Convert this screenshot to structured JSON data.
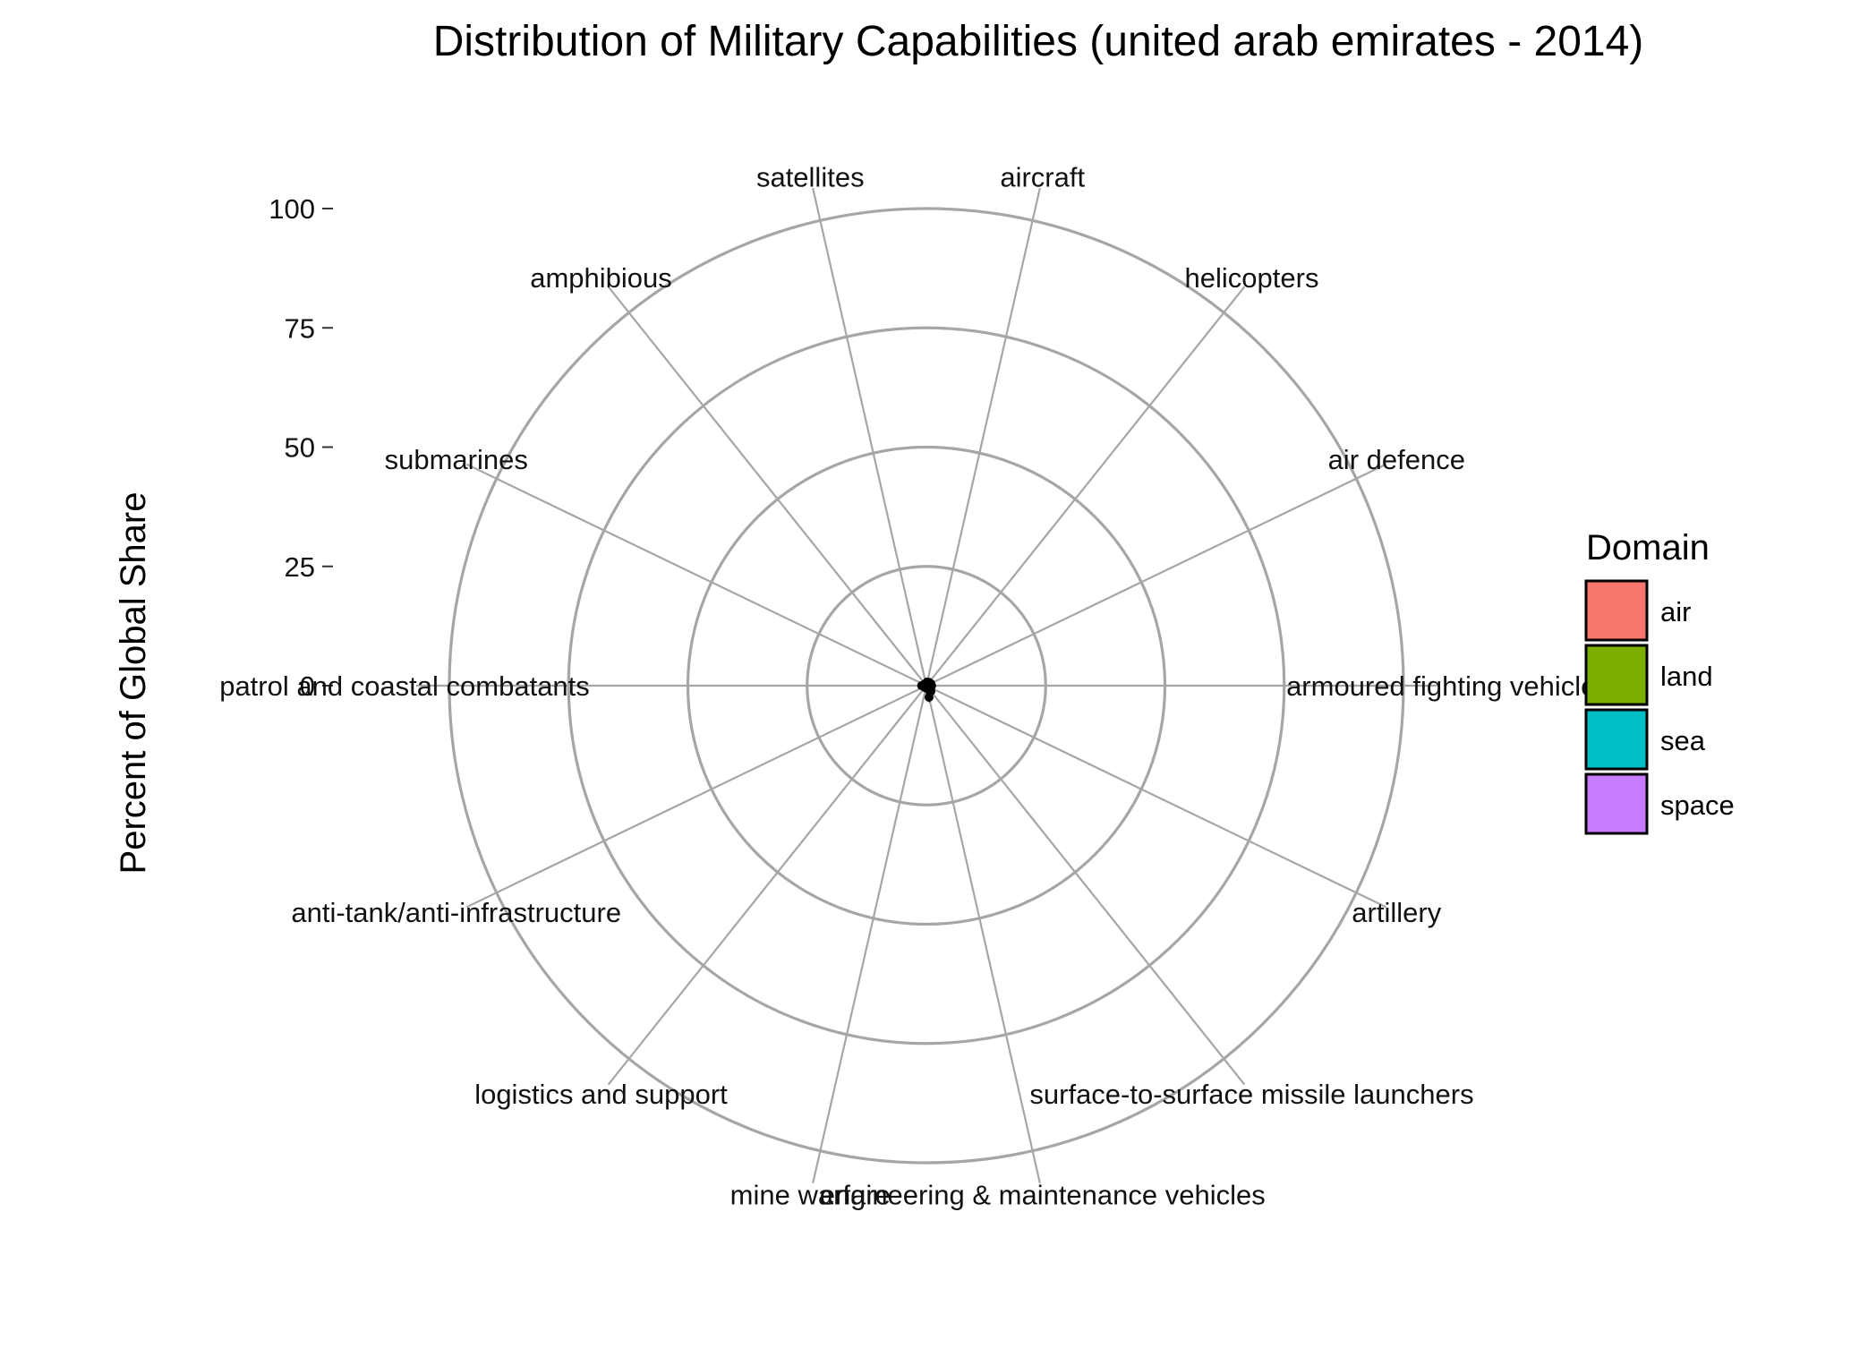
{
  "chart_data": {
    "type": "radar",
    "title": "Distribution of Military Capabilities (united arab emirates - 2014)",
    "ylabel": "Percent of Global Share",
    "ylim": [
      0,
      100
    ],
    "y_ticks": [
      "0",
      "25",
      "50",
      "75",
      "100"
    ],
    "grid": true,
    "categories": [
      "aircraft",
      "helicopters",
      "air defence",
      "armoured fighting vehicles",
      "artillery",
      "surface-to-surface missile launchers",
      "engineering & maintenance vehicles",
      "mine warfare",
      "logistics and support",
      "anti-tank/anti-infrastructure",
      "patrol and coastal combatants",
      "submarines",
      "amphibious",
      "satellites"
    ],
    "series": [
      {
        "values": [
          0.8,
          0.9,
          1.0,
          1.1,
          1.0,
          1.5,
          2.5,
          0.5,
          0.5,
          0.5,
          1.0,
          0.0,
          0.5,
          0.0
        ]
      }
    ],
    "legend": {
      "title": "Domain",
      "position": "right",
      "items": [
        {
          "label": "air",
          "color": "#F8766D"
        },
        {
          "label": "land",
          "color": "#7CAE00"
        },
        {
          "label": "sea",
          "color": "#00BFC4"
        },
        {
          "label": "space",
          "color": "#C77CFF"
        }
      ]
    },
    "colors": {
      "grid": "#a6a6a6",
      "data": "#000000"
    }
  }
}
